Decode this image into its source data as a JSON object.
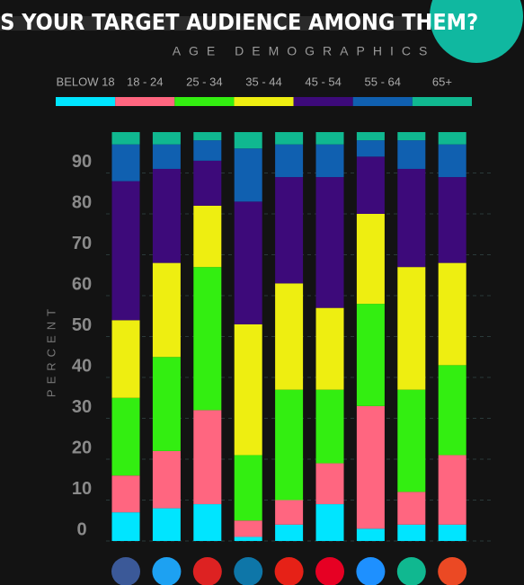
{
  "chart_data": {
    "type": "stacked-bar",
    "title": "IS YOUR TARGET AUDIENCE AMONG THEM?",
    "subtitle": "AGE DEMOGRAPHICS",
    "y_label": "PERCENT",
    "categories": [
      null,
      null,
      null,
      null,
      null,
      null,
      null,
      null,
      null
    ],
    "series": [
      {
        "name": "BELOW 18",
        "color": "#00e5ff",
        "values": [
          7,
          8,
          9,
          1,
          4,
          9,
          3,
          4,
          4
        ]
      },
      {
        "name": "18 - 24",
        "color": "#ff6680",
        "values": [
          9,
          14,
          23,
          4,
          6,
          10,
          30,
          8,
          17
        ]
      },
      {
        "name": "25 - 34",
        "color": "#33ee11",
        "values": [
          19,
          23,
          35,
          16,
          27,
          18,
          25,
          25,
          22
        ]
      },
      {
        "name": "35 - 44",
        "color": "#eeee11",
        "values": [
          19,
          23,
          15,
          32,
          26,
          20,
          22,
          30,
          25
        ]
      },
      {
        "name": "45 - 54",
        "color": "#3d0a7a",
        "values": [
          34,
          23,
          11,
          30,
          26,
          32,
          14,
          24,
          21
        ]
      },
      {
        "name": "55 - 64",
        "color": "#1060b0",
        "values": [
          9,
          6,
          5,
          13,
          8,
          8,
          4,
          7,
          8
        ]
      },
      {
        "name": "65+",
        "color": "#10b890",
        "values": [
          3,
          3,
          2,
          4,
          3,
          3,
          2,
          2,
          3
        ]
      }
    ],
    "ylim": [
      0,
      100
    ],
    "yticks": [
      0,
      10,
      20,
      30,
      40,
      50,
      60,
      70,
      80,
      90
    ],
    "grid": true
  }
}
